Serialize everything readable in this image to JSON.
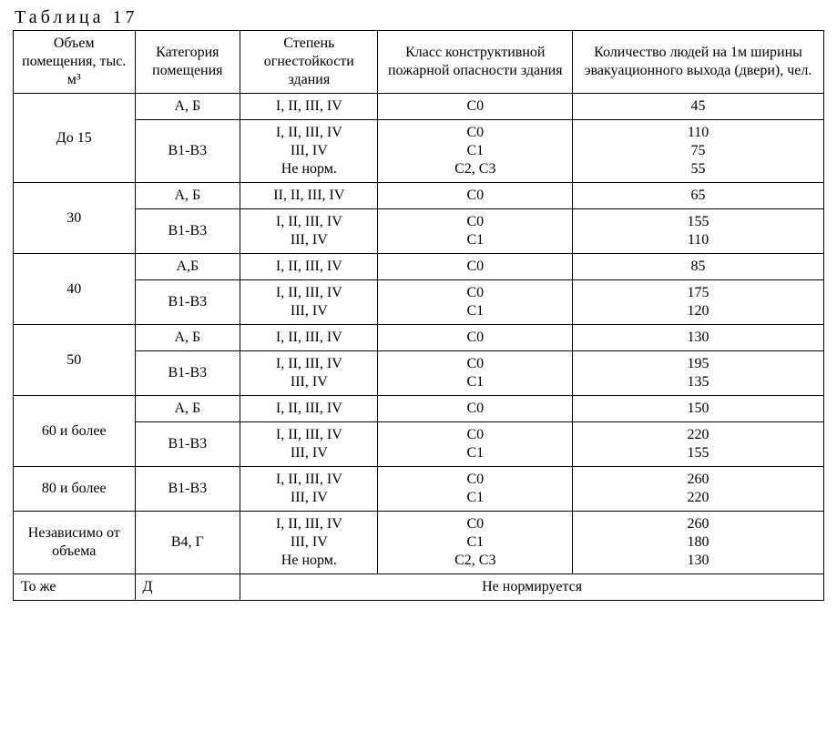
{
  "caption": "Таблица 17",
  "headers": {
    "c1": "Объем помещения, тыс. м³",
    "c2": "Категория помещения",
    "c3": "Степень огнестойкости здания",
    "c4": "Класс конструктивной пожарной опасности здания",
    "c5": "Количество людей на 1м ширины эвакуационного выхода (двери), чел."
  },
  "groups": [
    {
      "volume": "До 15",
      "rows": [
        {
          "cat": "А, Б",
          "fire": [
            "I, II, III, IV"
          ],
          "class": [
            "С0"
          ],
          "people": [
            "45"
          ]
        },
        {
          "cat": "В1-В3",
          "fire": [
            "I, II, III, IV",
            "III, IV",
            "Не норм."
          ],
          "class": [
            "С0",
            "С1",
            "С2, С3"
          ],
          "people": [
            "110",
            "75",
            "55"
          ]
        }
      ]
    },
    {
      "volume": "30",
      "rows": [
        {
          "cat": "А, Б",
          "fire": [
            "II, II, III, IV"
          ],
          "class": [
            "С0"
          ],
          "people": [
            "65"
          ]
        },
        {
          "cat": "В1-В3",
          "fire": [
            "I, II, III, IV",
            "III, IV"
          ],
          "class": [
            "С0",
            "С1"
          ],
          "people": [
            "155",
            "110"
          ]
        }
      ]
    },
    {
      "volume": "40",
      "rows": [
        {
          "cat": "А,Б",
          "fire": [
            "I, II, III, IV"
          ],
          "class": [
            "С0"
          ],
          "people": [
            "85"
          ]
        },
        {
          "cat": "В1-В3",
          "fire": [
            "I, II, III, IV",
            "III, IV"
          ],
          "class": [
            "С0",
            "С1"
          ],
          "people": [
            "175",
            "120"
          ]
        }
      ]
    },
    {
      "volume": "50",
      "rows": [
        {
          "cat": "А, Б",
          "fire": [
            "I, II, III, IV"
          ],
          "class": [
            "С0"
          ],
          "people": [
            "130"
          ]
        },
        {
          "cat": "В1-В3",
          "fire": [
            "I, II, III, IV",
            "III, IV"
          ],
          "class": [
            "С0",
            "С1"
          ],
          "people": [
            "195",
            "135"
          ]
        }
      ]
    },
    {
      "volume": "60 и более",
      "rows": [
        {
          "cat": "А, Б",
          "fire": [
            "I, II, III, IV"
          ],
          "class": [
            "С0"
          ],
          "people": [
            "150"
          ]
        },
        {
          "cat": "В1-В3",
          "fire": [
            "I, II, III, IV",
            "III, IV"
          ],
          "class": [
            "С0",
            "С1"
          ],
          "people": [
            "220",
            "155"
          ]
        }
      ]
    },
    {
      "volume": "80 и более",
      "rows": [
        {
          "cat": "В1-В3",
          "fire": [
            "I, II, III, IV",
            "III, IV"
          ],
          "class": [
            "С0",
            "С1"
          ],
          "people": [
            "260",
            "220"
          ]
        }
      ]
    },
    {
      "volume": "Независимо от объема",
      "rows": [
        {
          "cat": "В4, Г",
          "fire": [
            "I, II, III, IV",
            "III, IV",
            "Не норм."
          ],
          "class": [
            "С0",
            "С1",
            "С2, С3"
          ],
          "people": [
            "260",
            "180",
            "130"
          ]
        }
      ]
    }
  ],
  "footer": {
    "volume": "То же",
    "cat": "Д",
    "merged": "Не нормируется"
  }
}
